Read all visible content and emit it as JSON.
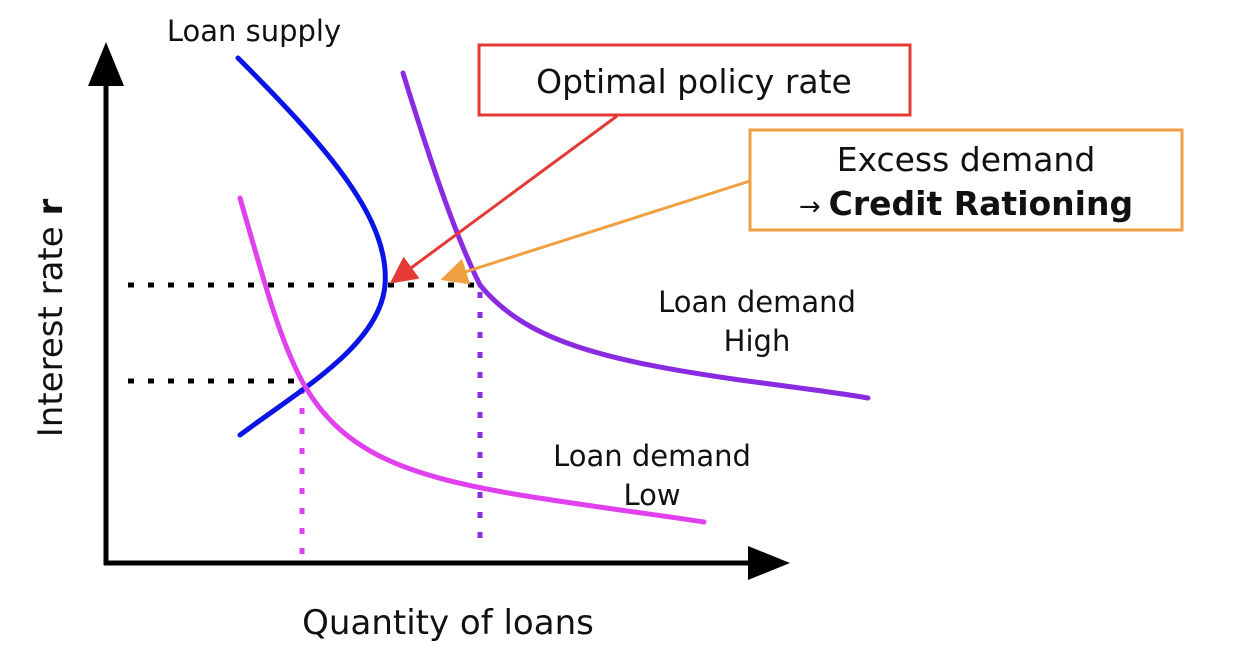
{
  "axes": {
    "y_label": "Interest rate ",
    "y_label_symbol": "r",
    "x_label": "Quantity of loans"
  },
  "curves": {
    "supply": {
      "label": "Loan supply",
      "color": "#0a14e6"
    },
    "demand_high": {
      "label_line1": "Loan demand",
      "label_line2": "High",
      "color": "#8a2be2"
    },
    "demand_low": {
      "label_line1": "Loan demand",
      "label_line2": "Low",
      "color": "#e040ee"
    }
  },
  "callouts": {
    "optimal": {
      "text": "Optimal policy rate",
      "color": "#e53935"
    },
    "excess": {
      "line1": "Excess demand",
      "arrow_glyph": "→",
      "line2_bold": "Credit Rationing",
      "color": "#f0a040"
    }
  },
  "guides": {
    "color": "#000000"
  }
}
